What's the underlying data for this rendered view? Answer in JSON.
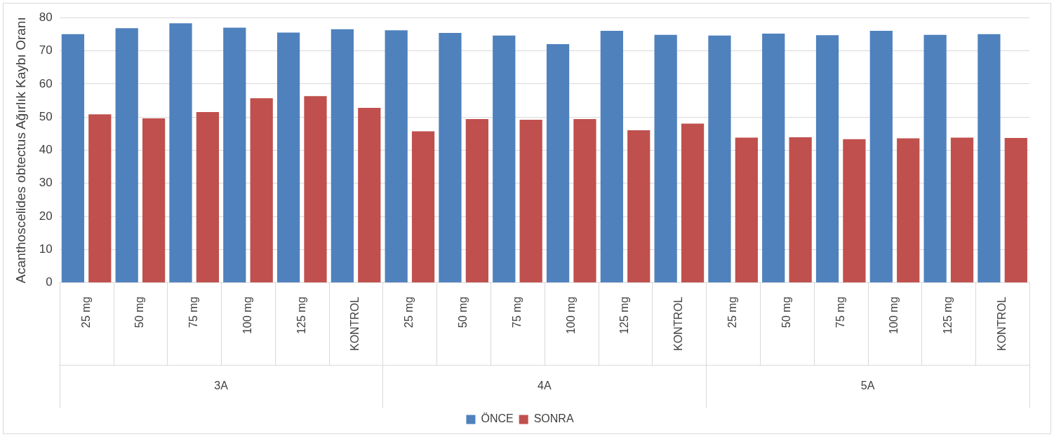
{
  "chart_data": {
    "type": "bar",
    "ylabel": "Acanthoscelides obtectus Ağırlık Kaybı Oranı",
    "categories": [
      "25 mg",
      "50 mg",
      "75 mg",
      "100 mg",
      "125 mg",
      "KONTROL",
      "25 mg",
      "50 mg",
      "75 mg",
      "100 mg",
      "125 mg",
      "KONTROL",
      "25 mg",
      "50 mg",
      "75 mg",
      "100 mg",
      "125 mg",
      "KONTROL"
    ],
    "series": [
      {
        "name": "ÖNCE",
        "color": "#4f81bd",
        "values": [
          75.0,
          76.8,
          78.3,
          77.0,
          75.5,
          76.5,
          76.2,
          75.4,
          74.6,
          72.0,
          76.0,
          74.8,
          74.6,
          75.2,
          74.7,
          76.0,
          74.8,
          75.0
        ]
      },
      {
        "name": "SONRA",
        "color": "#c0504d",
        "values": [
          50.8,
          49.6,
          51.5,
          55.7,
          56.3,
          52.8,
          45.7,
          49.4,
          49.2,
          49.4,
          46.0,
          48.0,
          43.8,
          43.9,
          43.3,
          43.6,
          43.8,
          43.7
        ]
      }
    ],
    "annotations": [
      "3A",
      "4A",
      "5A"
    ],
    "ylim": [
      0,
      80
    ],
    "yticks": [
      0,
      10,
      20,
      30,
      40,
      50,
      60,
      70,
      80
    ],
    "grid": "y",
    "legend": "bottom"
  }
}
